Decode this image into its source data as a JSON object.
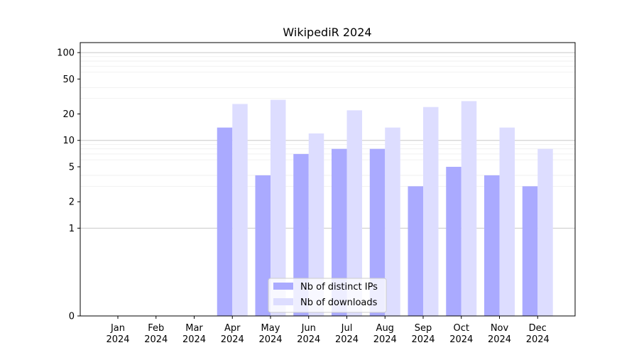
{
  "chart_data": {
    "type": "bar",
    "title": "WikipediR 2024",
    "xlabel": "",
    "ylabel": "",
    "yscale": "symlog",
    "ylim": [
      0,
      130
    ],
    "grid": "horizontal",
    "legend_position": "bottom-center",
    "categories": [
      "Jan\n2024",
      "Feb\n2024",
      "Mar\n2024",
      "Apr\n2024",
      "May\n2024",
      "Jun\n2024",
      "Jul\n2024",
      "Aug\n2024",
      "Sep\n2024",
      "Oct\n2024",
      "Nov\n2024",
      "Dec\n2024"
    ],
    "yticks": [
      0,
      1,
      2,
      5,
      10,
      20,
      50,
      100
    ],
    "series": [
      {
        "name": "Nb of distinct IPs",
        "color": "#aaaaff",
        "values": [
          0,
          0,
          0,
          14,
          4,
          7,
          8,
          8,
          3,
          5,
          4,
          3
        ]
      },
      {
        "name": "Nb of downloads",
        "color": "#ddddff",
        "values": [
          0,
          0,
          0,
          26,
          29,
          12,
          22,
          14,
          24,
          28,
          14,
          8
        ]
      }
    ]
  }
}
